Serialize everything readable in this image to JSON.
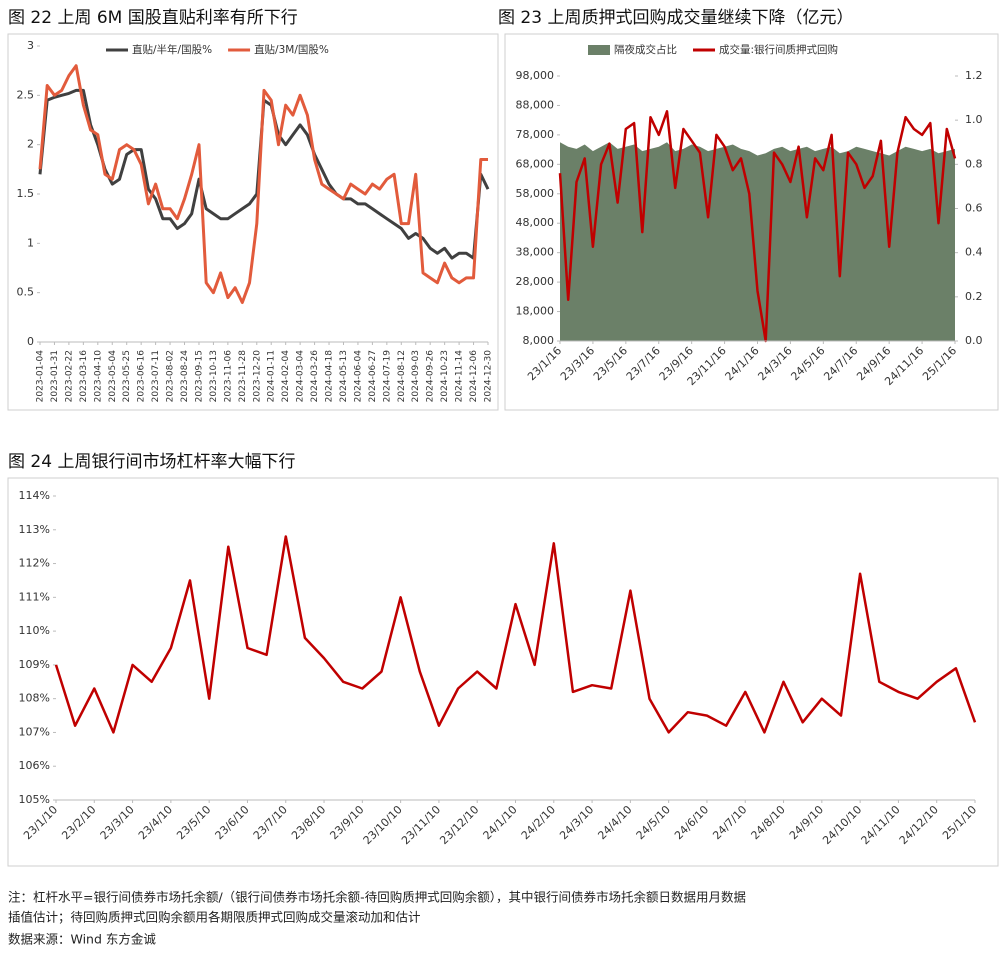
{
  "chart_data": [
    {
      "type": "line",
      "title": "图 22 上周 6M 国股直贴利率有所下行",
      "categories": [
        "2023-01-04",
        null,
        "2023-01-31",
        null,
        "2023-02-22",
        null,
        "2023-03-16",
        null,
        "2023-04-10",
        null,
        "2023-05-04",
        null,
        "2023-05-25",
        null,
        "2023-06-16",
        null,
        "2023-07-11",
        null,
        "2023-08-02",
        null,
        "2023-08-24",
        null,
        "2023-09-15",
        null,
        "2023-10-13",
        null,
        "2023-11-06",
        null,
        "2023-11-28",
        null,
        "2023-12-20",
        null,
        "2024-01-11",
        null,
        "2024-02-04",
        null,
        "2024-03-04",
        null,
        "2024-03-26",
        null,
        "2024-04-18",
        null,
        "2024-05-13",
        null,
        "2024-06-04",
        null,
        "2024-06-27",
        null,
        "2024-07-19",
        null,
        "2024-08-12",
        null,
        "2024-09-03",
        null,
        "2024-09-26",
        null,
        "2024-10-23",
        null,
        "2024-11-14",
        null,
        "2024-12-06",
        null,
        "2024-12-30"
      ],
      "series": [
        {
          "name": "直贴/半年/国股%",
          "color": "#404040",
          "values": [
            1.7,
            2.45,
            2.48,
            2.5,
            2.52,
            2.55,
            2.55,
            2.2,
            2.0,
            1.75,
            1.6,
            1.65,
            1.9,
            1.95,
            1.95,
            1.55,
            1.45,
            1.25,
            1.25,
            1.15,
            1.2,
            1.3,
            1.65,
            1.35,
            1.3,
            1.25,
            1.25,
            1.3,
            1.35,
            1.4,
            1.5,
            2.45,
            2.4,
            2.1,
            2.0,
            2.1,
            2.2,
            2.1,
            1.9,
            1.75,
            1.6,
            1.5,
            1.45,
            1.45,
            1.4,
            1.4,
            1.35,
            1.3,
            1.25,
            1.2,
            1.15,
            1.05,
            1.1,
            1.05,
            0.95,
            0.9,
            0.95,
            0.85,
            0.9,
            0.9,
            0.85,
            1.7,
            1.55
          ]
        },
        {
          "name": "直贴/3M/国股%",
          "color": "#e25b3c",
          "values": [
            1.75,
            2.6,
            2.5,
            2.55,
            2.7,
            2.8,
            2.4,
            2.15,
            2.1,
            1.7,
            1.65,
            1.95,
            2.0,
            1.95,
            1.8,
            1.4,
            1.6,
            1.35,
            1.35,
            1.25,
            1.45,
            1.7,
            2.0,
            0.6,
            0.5,
            0.7,
            0.45,
            0.55,
            0.4,
            0.6,
            1.2,
            2.55,
            2.45,
            2.0,
            2.4,
            2.3,
            2.5,
            2.3,
            1.85,
            1.6,
            1.55,
            1.5,
            1.45,
            1.6,
            1.55,
            1.5,
            1.6,
            1.55,
            1.65,
            1.7,
            1.2,
            1.2,
            1.7,
            0.7,
            0.65,
            0.6,
            0.8,
            0.65,
            0.6,
            0.65,
            0.65,
            1.85,
            1.85
          ]
        }
      ],
      "ylim": [
        0,
        3
      ],
      "yticks": [
        0,
        0.5,
        1,
        1.5,
        2,
        2.5,
        3
      ],
      "grid": false
    },
    {
      "type": "combo",
      "title": "图 23 上周质押式回购成交量继续下降（亿元）",
      "categories": [
        "23/1/16",
        null,
        null,
        null,
        "23/3/16",
        null,
        null,
        null,
        "23/5/16",
        null,
        null,
        null,
        "23/7/16",
        null,
        null,
        null,
        "23/9/16",
        null,
        null,
        null,
        "23/11/16",
        null,
        null,
        null,
        "24/1/16",
        null,
        null,
        null,
        "24/3/16",
        null,
        null,
        null,
        "24/5/16",
        null,
        null,
        null,
        "24/7/16",
        null,
        null,
        null,
        "24/9/16",
        null,
        null,
        null,
        "24/11/16",
        null,
        null,
        null,
        "25/1/16"
      ],
      "series": [
        {
          "name": "隔夜成交占比",
          "type": "area",
          "axis": "y2",
          "color": "#6b8068",
          "values": [
            0.9,
            0.88,
            0.87,
            0.89,
            0.86,
            0.88,
            0.9,
            0.87,
            0.88,
            0.89,
            0.86,
            0.87,
            0.88,
            0.9,
            0.86,
            0.87,
            0.89,
            0.88,
            0.86,
            0.87,
            0.88,
            0.89,
            0.87,
            0.86,
            0.84,
            0.85,
            0.87,
            0.88,
            0.86,
            0.87,
            0.88,
            0.86,
            0.87,
            0.88,
            0.85,
            0.86,
            0.88,
            0.87,
            0.86,
            0.85,
            0.84,
            0.86,
            0.88,
            0.87,
            0.86,
            0.87,
            0.85,
            0.86,
            0.87
          ]
        },
        {
          "name": "成交量:银行间质押式回购",
          "type": "line",
          "color": "#c00000",
          "values": [
            65000,
            22000,
            62000,
            70000,
            40000,
            68000,
            75000,
            55000,
            80000,
            82000,
            45000,
            84000,
            78000,
            86000,
            60000,
            80000,
            76000,
            72000,
            50000,
            78000,
            74000,
            66000,
            70000,
            58000,
            25000,
            8000,
            72000,
            68000,
            62000,
            74000,
            50000,
            70000,
            66000,
            78000,
            30000,
            72000,
            68000,
            60000,
            64000,
            76000,
            40000,
            72000,
            84000,
            80000,
            78000,
            82000,
            48000,
            80000,
            70000
          ]
        }
      ],
      "ylim": [
        8000,
        98000
      ],
      "yticks": [
        {
          "value": 8000,
          "label": "8,000"
        },
        {
          "value": 18000,
          "label": "18,000"
        },
        {
          "value": 28000,
          "label": "28,000"
        },
        {
          "value": 38000,
          "label": "38,000"
        },
        {
          "value": 48000,
          "label": "48,000"
        },
        {
          "value": 58000,
          "label": "58,000"
        },
        {
          "value": 68000,
          "label": "68,000"
        },
        {
          "value": 78000,
          "label": "78,000"
        },
        {
          "value": 88000,
          "label": "88,000"
        },
        {
          "value": 98000,
          "label": "98,000"
        }
      ],
      "y2lim": [
        0,
        1.2
      ],
      "y2ticks": [
        {
          "value": 0,
          "label": "0.0"
        },
        0.2,
        0.4,
        0.6,
        0.8,
        {
          "value": 1,
          "label": "1.0"
        },
        1.2
      ],
      "grid": false
    },
    {
      "type": "line",
      "title": "图 24 上周银行间市场杠杆率大幅下行",
      "categories": [
        "23/1/10",
        null,
        "23/2/10",
        null,
        "23/3/10",
        null,
        "23/4/10",
        null,
        "23/5/10",
        null,
        "23/6/10",
        null,
        "23/7/10",
        null,
        "23/8/10",
        null,
        "23/9/10",
        null,
        "23/10/10",
        null,
        "23/11/10",
        null,
        "23/12/10",
        null,
        "24/1/10",
        null,
        "24/2/10",
        null,
        "24/3/10",
        null,
        "24/4/10",
        null,
        "24/5/10",
        null,
        "24/6/10",
        null,
        "24/7/10",
        null,
        "24/8/10",
        null,
        "24/9/10",
        null,
        "24/10/10",
        null,
        "24/11/10",
        null,
        "24/12/10",
        null,
        "25/1/10"
      ],
      "series": [
        {
          "color": "#c00000",
          "values": [
            109.0,
            107.2,
            108.3,
            107.0,
            109.0,
            108.5,
            109.5,
            111.5,
            108.0,
            112.5,
            109.5,
            109.3,
            112.8,
            109.8,
            109.2,
            108.5,
            108.3,
            108.8,
            111.0,
            108.8,
            107.2,
            108.3,
            108.8,
            108.3,
            110.8,
            109.0,
            112.6,
            108.2,
            108.4,
            108.3,
            111.2,
            108.0,
            107.0,
            107.6,
            107.5,
            107.2,
            108.2,
            107.0,
            108.5,
            107.3,
            108.0,
            107.5,
            111.7,
            108.5,
            108.2,
            108.0,
            108.5,
            108.9,
            107.3
          ]
        }
      ],
      "ylim": [
        105,
        114
      ],
      "yticks": [
        {
          "value": 105,
          "label": "105%"
        },
        {
          "value": 106,
          "label": "106%"
        },
        {
          "value": 107,
          "label": "107%"
        },
        {
          "value": 108,
          "label": "108%"
        },
        {
          "value": 109,
          "label": "109%"
        },
        {
          "value": 110,
          "label": "110%"
        },
        {
          "value": 111,
          "label": "111%"
        },
        {
          "value": 112,
          "label": "112%"
        },
        {
          "value": 113,
          "label": "113%"
        },
        {
          "value": 114,
          "label": "114%"
        }
      ],
      "grid": false
    }
  ],
  "note": [
    "注：杠杆水平=银行间债券市场托余额/（银行间债券市场托余额-待回购质押式回购余额），其中银行间债券市场托余额日数据用月数据",
    "插值估计；待回购质押式回购余额用各期限质押式回购成交量滚动加和估计"
  ],
  "source": "数据来源：Wind 东方金诚"
}
